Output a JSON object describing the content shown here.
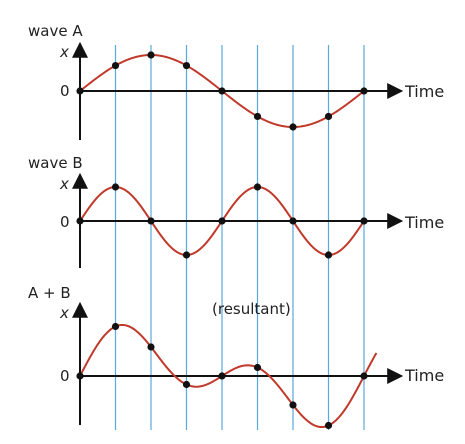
{
  "panels": [
    {
      "title": "wave A",
      "y_label": "x",
      "zero_label": "0",
      "x_label": "Time",
      "annotation": "",
      "amplitude": 1,
      "period": 8,
      "phase": 0,
      "samples": [
        0,
        0.7071,
        1,
        0.7071,
        0,
        -0.7071,
        -1,
        -0.7071,
        0
      ]
    },
    {
      "title": "wave B",
      "y_label": "x",
      "zero_label": "0",
      "x_label": "Time",
      "annotation": "",
      "amplitude": 1,
      "period": 4,
      "phase": 0,
      "samples": [
        0,
        1,
        0,
        -1,
        0,
        1,
        0,
        -1,
        0
      ]
    },
    {
      "title": "A + B",
      "y_label": "x",
      "zero_label": "0",
      "x_label": "Time",
      "annotation": "(resultant)",
      "amplitude": 1,
      "period": 0,
      "phase": 0,
      "samples": [
        0,
        1.7071,
        1,
        -0.2929,
        0,
        0.2929,
        -1,
        -1.7071,
        0
      ]
    }
  ],
  "colors": {
    "wave": "#c0392b",
    "point": "#111111",
    "axis": "#111111",
    "gridline": "#5aa9dd",
    "text": "#222222"
  }
}
